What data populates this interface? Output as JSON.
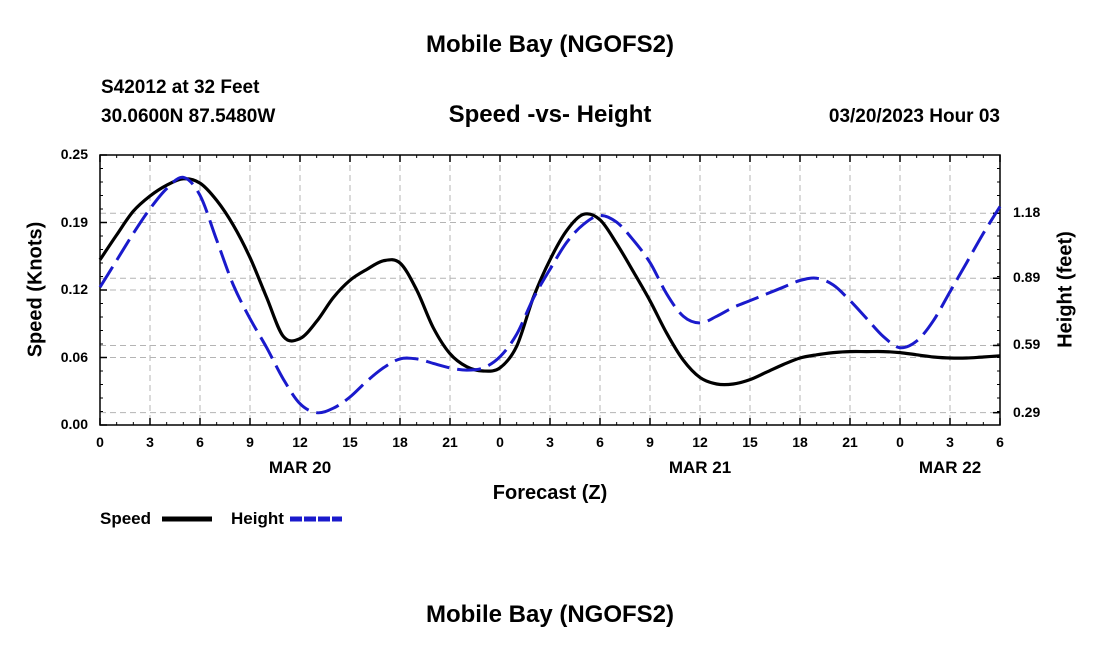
{
  "page_title": "Mobile Bay (NGOFS2)",
  "footer_title": "Mobile Bay (NGOFS2)",
  "station": {
    "line1": "S42012 at 32 Feet",
    "line2": "30.0600N  87.5480W"
  },
  "timestamp": "03/20/2023 Hour 03",
  "chart_data": {
    "type": "line",
    "title": "Speed -vs- Height",
    "xlabel": "Forecast (Z)",
    "ylabel": "Speed (Knots)",
    "y2label": "Height (feet)",
    "x_range": [
      0,
      54
    ],
    "ylim": [
      0,
      0.25
    ],
    "y2lim": [
      0.235,
      1.44
    ],
    "x_ticks": [
      0,
      3,
      6,
      9,
      12,
      15,
      18,
      21,
      24,
      27,
      30,
      33,
      36,
      39,
      42,
      45,
      48,
      51,
      54
    ],
    "x_tick_labels": [
      "0",
      "3",
      "6",
      "9",
      "12",
      "15",
      "18",
      "21",
      "0",
      "3",
      "6",
      "9",
      "12",
      "15",
      "18",
      "21",
      "0",
      "3",
      "6"
    ],
    "date_labels": [
      {
        "x": 12,
        "label": "MAR 20"
      },
      {
        "x": 36,
        "label": "MAR 21"
      },
      {
        "x": 51,
        "label": "MAR 22"
      }
    ],
    "y_ticks": [
      0,
      0.0625,
      0.125,
      0.1875,
      0.25
    ],
    "y_tick_labels": [
      "0.00",
      "0.06",
      "0.12",
      "0.19",
      "0.25"
    ],
    "y2_ticks": [
      0.29,
      0.59,
      0.89,
      1.18
    ],
    "y2_tick_labels": [
      "0.29",
      "0.59",
      "0.89",
      "1.18"
    ],
    "grid": true,
    "legend": "bottom-left",
    "series": [
      {
        "name": "Speed",
        "axis": "left",
        "color": "#000000",
        "style": "solid",
        "x": [
          0,
          1,
          2,
          3,
          4,
          5,
          6,
          7,
          8,
          9,
          10,
          11,
          12,
          13,
          14,
          15,
          16,
          17,
          18,
          19,
          20,
          21,
          22,
          23,
          24,
          25,
          26,
          27,
          28,
          29,
          30,
          31,
          32,
          33,
          34,
          35,
          36,
          37,
          38,
          39,
          40,
          41,
          42,
          43,
          44,
          45,
          46,
          47,
          48,
          49,
          50,
          51,
          52,
          53,
          54
        ],
        "values": [
          0.153,
          0.176,
          0.198,
          0.212,
          0.222,
          0.228,
          0.224,
          0.208,
          0.185,
          0.155,
          0.118,
          0.082,
          0.08,
          0.096,
          0.118,
          0.134,
          0.144,
          0.152,
          0.15,
          0.125,
          0.09,
          0.066,
          0.054,
          0.05,
          0.053,
          0.073,
          0.118,
          0.153,
          0.18,
          0.195,
          0.19,
          0.168,
          0.142,
          0.115,
          0.085,
          0.06,
          0.044,
          0.038,
          0.038,
          0.042,
          0.049,
          0.056,
          0.062,
          0.065,
          0.067,
          0.068,
          0.068,
          0.068,
          0.067,
          0.065,
          0.063,
          0.062,
          0.062,
          0.063,
          0.064
        ]
      },
      {
        "name": "Height",
        "axis": "right",
        "color": "#1a1acc",
        "style": "dashed",
        "x": [
          0,
          1,
          2,
          3,
          4,
          5,
          6,
          7,
          8,
          9,
          10,
          11,
          12,
          13,
          14,
          15,
          16,
          17,
          18,
          19,
          20,
          21,
          22,
          23,
          24,
          25,
          26,
          27,
          28,
          29,
          30,
          31,
          32,
          33,
          34,
          35,
          36,
          37,
          38,
          39,
          40,
          41,
          42,
          43,
          44,
          45,
          46,
          47,
          48,
          49,
          50,
          51,
          52,
          53,
          54
        ],
        "values": [
          0.85,
          0.97,
          1.09,
          1.2,
          1.29,
          1.34,
          1.26,
          1.06,
          0.86,
          0.71,
          0.58,
          0.44,
          0.33,
          0.29,
          0.31,
          0.36,
          0.43,
          0.49,
          0.53,
          0.53,
          0.51,
          0.49,
          0.48,
          0.49,
          0.54,
          0.64,
          0.8,
          0.93,
          1.05,
          1.13,
          1.17,
          1.14,
          1.06,
          0.96,
          0.82,
          0.72,
          0.69,
          0.72,
          0.76,
          0.79,
          0.82,
          0.85,
          0.88,
          0.89,
          0.86,
          0.79,
          0.71,
          0.63,
          0.58,
          0.61,
          0.7,
          0.83,
          0.96,
          1.09,
          1.21
        ]
      }
    ]
  }
}
